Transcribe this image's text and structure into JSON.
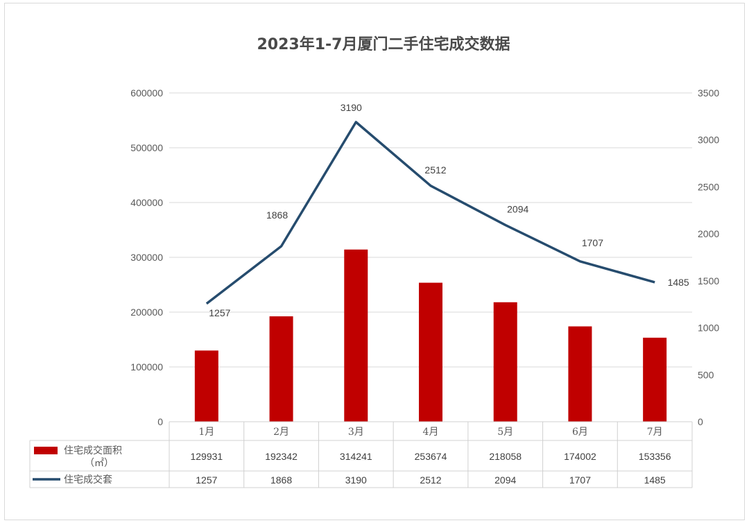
{
  "chart_data": {
    "type": "bar",
    "title": "2023年1-7月厦门二手住宅成交数据",
    "categories": [
      "1月",
      "2月",
      "3月",
      "4月",
      "5月",
      "6月",
      "7月"
    ],
    "series": [
      {
        "name": "住宅成交面积（㎡）",
        "type": "bar",
        "axis": "left",
        "color": "#c00000",
        "values": [
          129931,
          192342,
          314241,
          253674,
          218058,
          174002,
          153356
        ]
      },
      {
        "name": "住宅成交套",
        "type": "line",
        "axis": "right",
        "color": "#264c6e",
        "values": [
          1257,
          1868,
          3190,
          2512,
          2094,
          1707,
          1485
        ]
      }
    ],
    "left_axis": {
      "ylim": [
        0,
        600000
      ],
      "ticks": [
        "0",
        "100000",
        "200000",
        "300000",
        "400000",
        "500000",
        "600000"
      ]
    },
    "right_axis": {
      "ylim": [
        0,
        3500
      ],
      "ticks": [
        "0",
        "500",
        "1000",
        "1500",
        "2000",
        "2500",
        "3000",
        "3500"
      ]
    },
    "grid": true,
    "legend": "bottom-left data table",
    "data_table": true,
    "legend_labels": {
      "bar_line1": "住宅成交面积",
      "bar_line2": "（㎡）",
      "line": "住宅成交套"
    }
  }
}
